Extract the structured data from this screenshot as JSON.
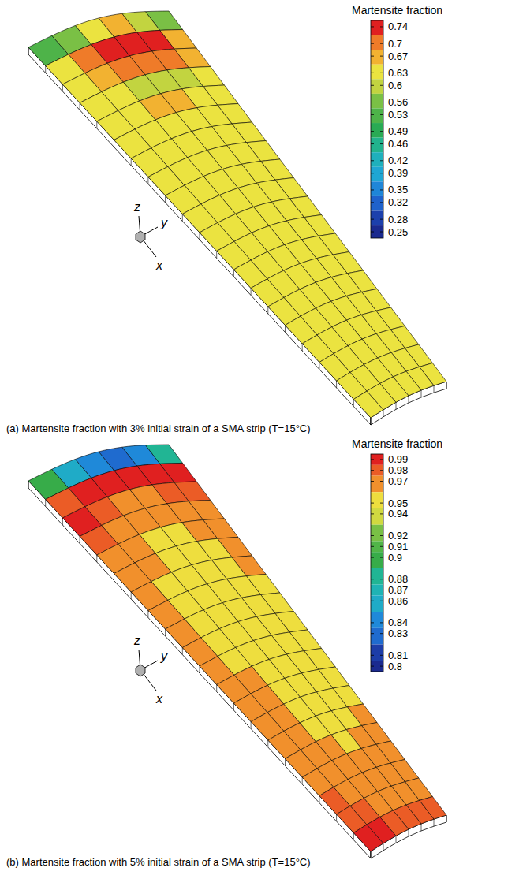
{
  "chart_data": [
    {
      "type": "heatmap",
      "title": "(a) Martensite fraction with 3% initial strain of a SMA strip (T=15°C)",
      "colorbar_label": "Martensite fraction",
      "colorbar_range": [
        0.235,
        0.755
      ],
      "colorbar_ticks": [
        0.74,
        0.7,
        0.67,
        0.63,
        0.6,
        0.56,
        0.53,
        0.49,
        0.46,
        0.42,
        0.39,
        0.35,
        0.32,
        0.28,
        0.25
      ],
      "axis_labels": [
        "x",
        "y",
        "z"
      ],
      "cells": [
        [
          0.55,
          0.6,
          0.65,
          0.64,
          0.58,
          0.52
        ],
        [
          0.66,
          0.72,
          0.74,
          0.74,
          0.71,
          0.63
        ],
        [
          0.65,
          0.69,
          0.7,
          0.7,
          0.68,
          0.64
        ],
        [
          0.62,
          0.61,
          0.61,
          0.61,
          0.62,
          0.63
        ],
        [
          0.63,
          0.64,
          0.65,
          0.65,
          0.64,
          0.63
        ],
        [
          0.63,
          0.64,
          0.64,
          0.64,
          0.64,
          0.63
        ],
        [
          0.63,
          0.63,
          0.64,
          0.64,
          0.63,
          0.63
        ],
        [
          0.63,
          0.63,
          0.63,
          0.63,
          0.63,
          0.63
        ],
        [
          0.63,
          0.64,
          0.64,
          0.64,
          0.63,
          0.63
        ],
        [
          0.63,
          0.63,
          0.64,
          0.63,
          0.63,
          0.63
        ],
        [
          0.63,
          0.63,
          0.63,
          0.63,
          0.63,
          0.63
        ],
        [
          0.63,
          0.63,
          0.64,
          0.63,
          0.63,
          0.63
        ],
        [
          0.63,
          0.63,
          0.63,
          0.63,
          0.63,
          0.63
        ],
        [
          0.63,
          0.64,
          0.63,
          0.63,
          0.63,
          0.63
        ],
        [
          0.63,
          0.63,
          0.63,
          0.63,
          0.63,
          0.63
        ],
        [
          0.63,
          0.63,
          0.63,
          0.63,
          0.63,
          0.63
        ],
        [
          0.63,
          0.63,
          0.63,
          0.63,
          0.63,
          0.64
        ],
        [
          0.63,
          0.63,
          0.63,
          0.63,
          0.63,
          0.63
        ],
        [
          0.63,
          0.63,
          0.63,
          0.63,
          0.64,
          0.64
        ],
        [
          0.63,
          0.63,
          0.63,
          0.64,
          0.64,
          0.64
        ]
      ]
    },
    {
      "type": "heatmap",
      "title": "(b) Martensite fraction with 5% initial strain of a SMA strip (T=15°C)",
      "colorbar_label": "Martensite fraction",
      "colorbar_range": [
        0.795,
        0.995
      ],
      "colorbar_ticks": [
        0.99,
        0.98,
        0.97,
        0.95,
        0.94,
        0.92,
        0.91,
        0.9,
        0.88,
        0.87,
        0.86,
        0.84,
        0.83,
        0.81,
        0.8
      ],
      "axis_labels": [
        "x",
        "y",
        "z"
      ],
      "cells": [
        [
          0.88,
          0.84,
          0.83,
          0.84,
          0.86,
          0.9
        ],
        [
          0.99,
          0.99,
          0.99,
          0.99,
          0.99,
          0.98
        ],
        [
          0.98,
          0.98,
          0.97,
          0.97,
          0.98,
          0.99
        ],
        [
          0.97,
          0.96,
          0.96,
          0.96,
          0.97,
          0.98
        ],
        [
          0.97,
          0.96,
          0.95,
          0.95,
          0.96,
          0.97
        ],
        [
          0.96,
          0.95,
          0.95,
          0.95,
          0.96,
          0.97
        ],
        [
          0.96,
          0.95,
          0.95,
          0.95,
          0.95,
          0.97
        ],
        [
          0.95,
          0.95,
          0.95,
          0.95,
          0.95,
          0.97
        ],
        [
          0.95,
          0.95,
          0.95,
          0.95,
          0.95,
          0.97
        ],
        [
          0.95,
          0.95,
          0.95,
          0.95,
          0.95,
          0.97
        ],
        [
          0.95,
          0.95,
          0.95,
          0.95,
          0.95,
          0.97
        ],
        [
          0.95,
          0.95,
          0.95,
          0.95,
          0.96,
          0.97
        ],
        [
          0.95,
          0.95,
          0.95,
          0.95,
          0.96,
          0.97
        ],
        [
          0.95,
          0.95,
          0.95,
          0.95,
          0.96,
          0.97
        ],
        [
          0.96,
          0.95,
          0.95,
          0.95,
          0.96,
          0.97
        ],
        [
          0.96,
          0.96,
          0.95,
          0.96,
          0.96,
          0.97
        ],
        [
          0.97,
          0.96,
          0.96,
          0.96,
          0.97,
          0.97
        ],
        [
          0.97,
          0.97,
          0.97,
          0.97,
          0.97,
          0.98
        ],
        [
          0.97,
          0.97,
          0.97,
          0.97,
          0.98,
          0.98
        ],
        [
          0.98,
          0.98,
          0.98,
          0.98,
          0.99,
          0.99
        ]
      ]
    }
  ]
}
